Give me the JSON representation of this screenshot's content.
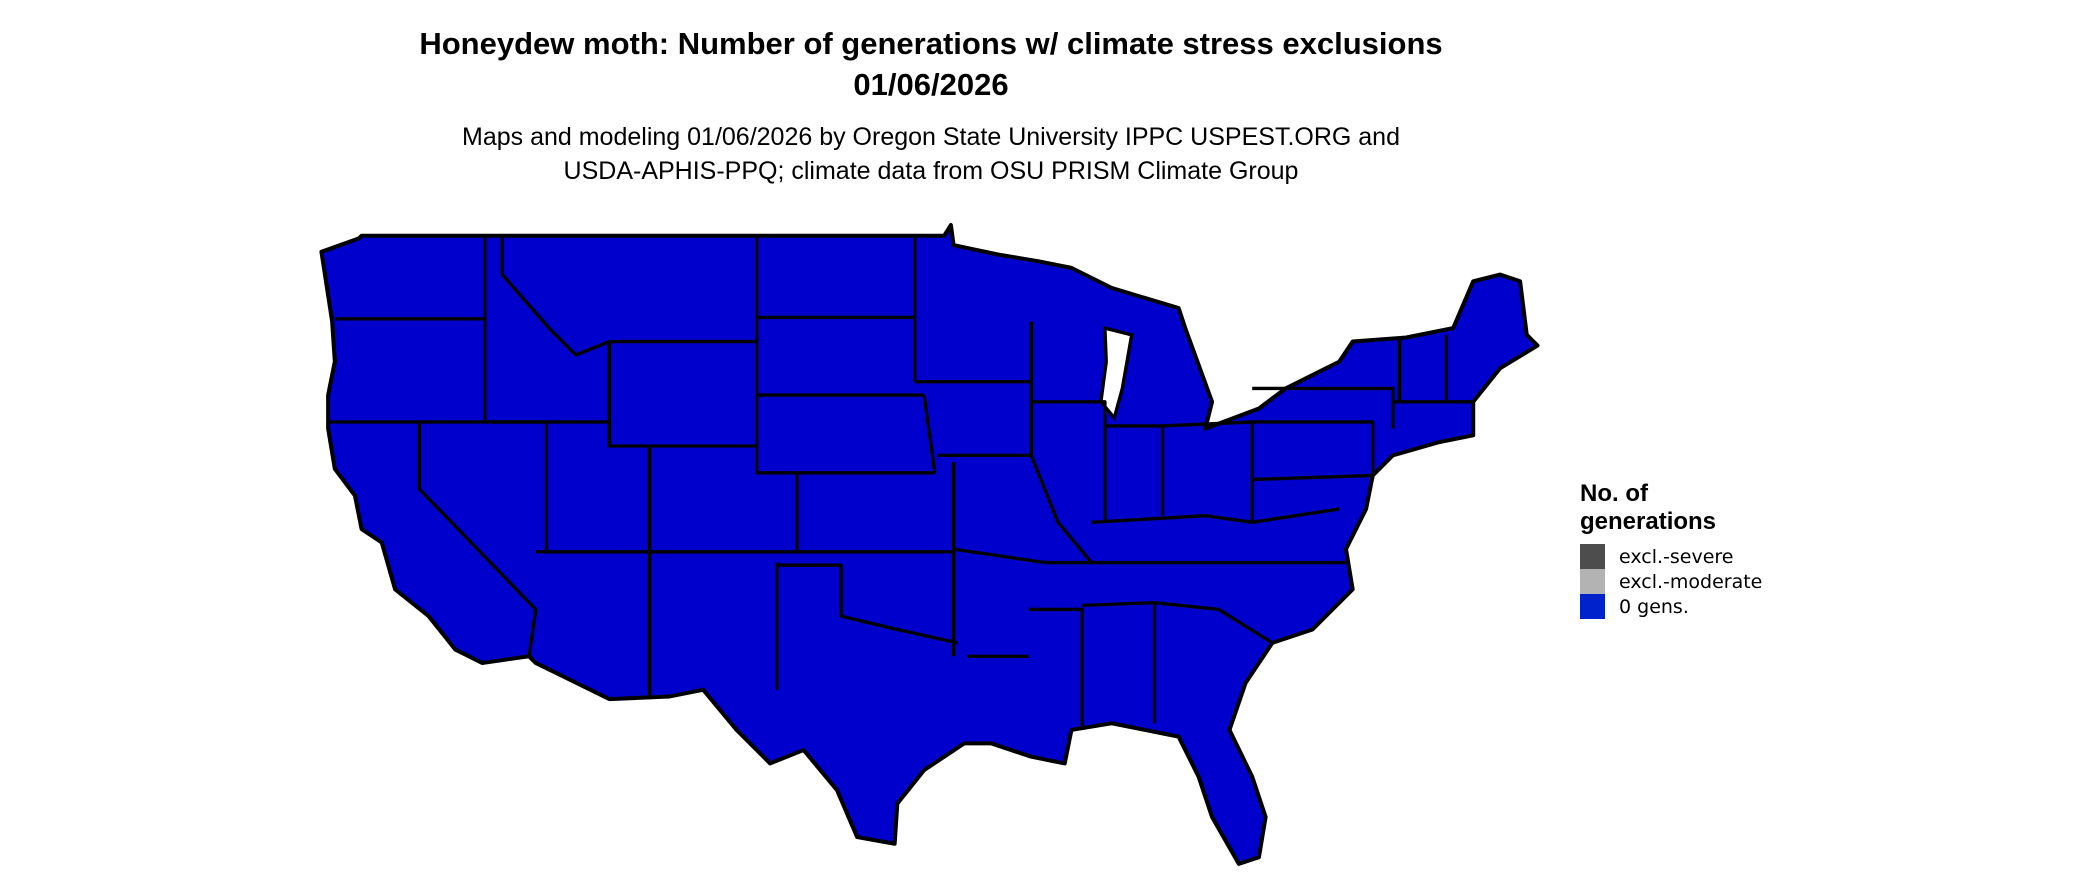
{
  "title": {
    "line1": "Honeydew moth: Number of generations w/ climate stress exclusions",
    "line2": "01/06/2026"
  },
  "subtitle": {
    "line1": "Maps and modeling 01/06/2026 by Oregon State University IPPC USPEST.ORG and",
    "line2": "USDA-APHIS-PPQ; climate data from OSU PRISM Climate Group"
  },
  "map": {
    "region": "Contiguous United States",
    "fill_color": "#0000cc",
    "border_color": "#000000",
    "displayed_category": "0 gens."
  },
  "legend": {
    "title_line1": "No. of",
    "title_line2": "generations",
    "items": [
      {
        "label": "excl.-severe",
        "color": "#4d4d4d"
      },
      {
        "label": "excl.-moderate",
        "color": "#b3b3b3"
      },
      {
        "label": "0 gens.",
        "color": "#0022cc"
      }
    ]
  }
}
